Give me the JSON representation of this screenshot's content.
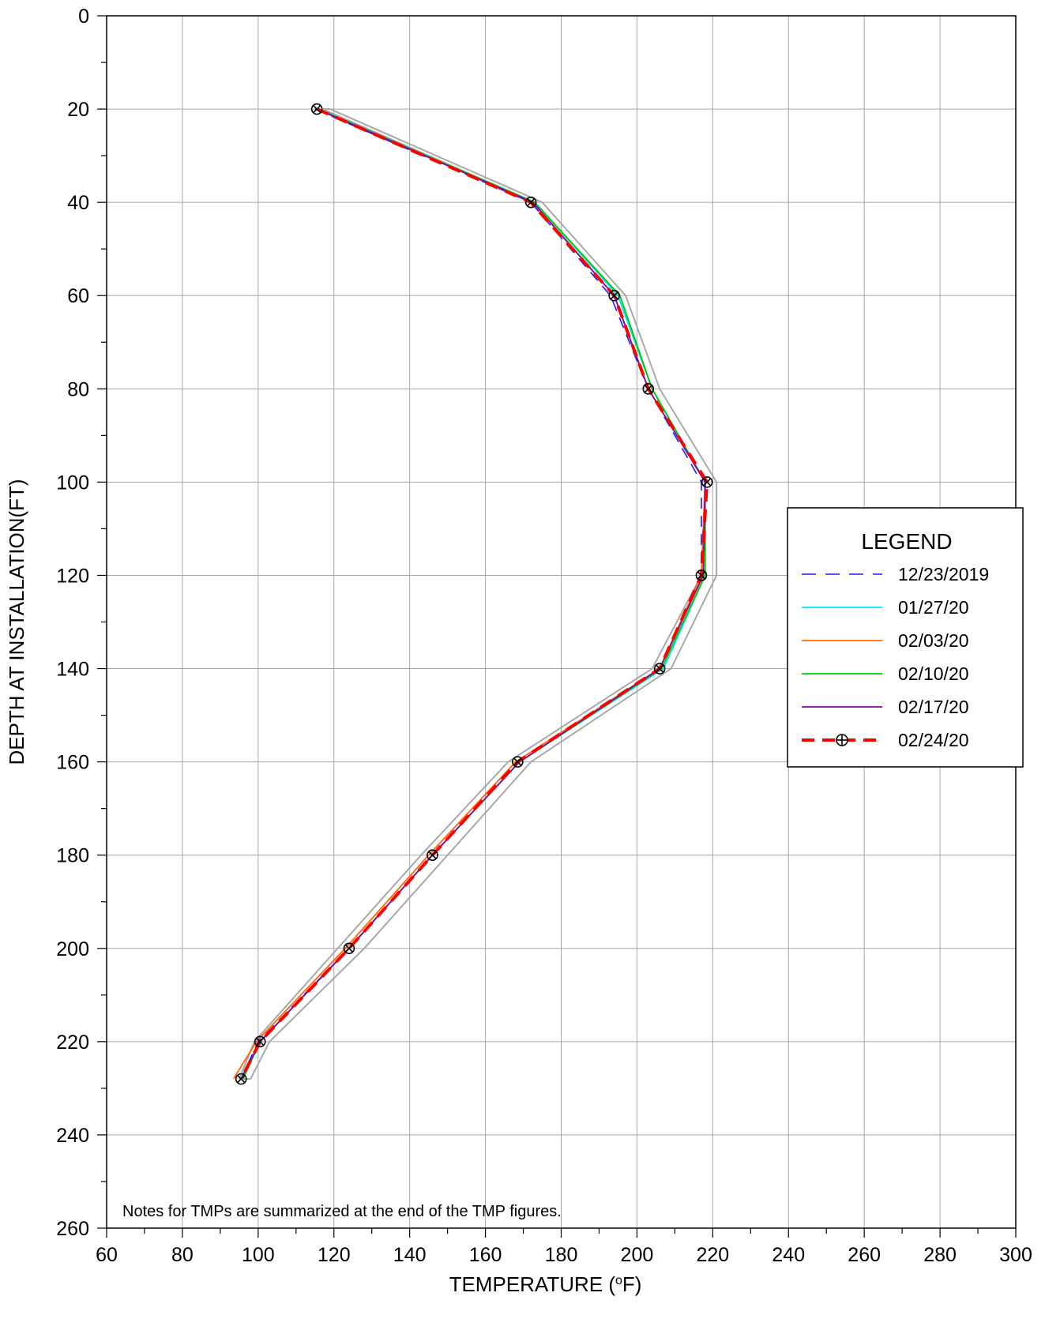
{
  "chart_data": {
    "type": "line",
    "xlabel": "TEMPERATURE (",
    "xlabel_superscript": "o",
    "xlabel_unit": "F)",
    "ylabel": "DEPTH AT INSTALLATION(FT)",
    "xlim": [
      60,
      300
    ],
    "ylim": [
      0,
      260
    ],
    "y_inverted": true,
    "x_ticks": [
      60,
      80,
      100,
      120,
      140,
      160,
      180,
      200,
      220,
      240,
      260,
      280,
      300
    ],
    "y_ticks": [
      0,
      20,
      40,
      60,
      80,
      100,
      120,
      140,
      160,
      180,
      200,
      220,
      240,
      260
    ],
    "grid": true,
    "legend_placement": "right",
    "legend_title": "LEGEND",
    "note": "Notes for TMPs are summarized at the end of the TMP figures.",
    "depths": [
      20,
      40,
      60,
      80,
      100,
      120,
      140,
      160,
      180,
      200,
      220,
      228
    ],
    "reference_envelope": {
      "color": "#a8a8a8",
      "left": [
        117,
        173,
        195,
        204,
        218,
        217,
        204,
        166,
        143,
        121,
        99,
        95
      ],
      "right": [
        119,
        175,
        197,
        206,
        221,
        221,
        209,
        172,
        150,
        128,
        103,
        98
      ]
    },
    "series": [
      {
        "name": "12/23/2019",
        "color": "#1a1aff",
        "style": "dashed",
        "values": [
          115,
          172,
          193,
          203,
          217,
          217,
          206,
          169,
          146,
          124,
          100,
          95.5
        ]
      },
      {
        "name": "01/27/20",
        "color": "#00e5ff",
        "style": "solid",
        "values": [
          116,
          173,
          195,
          204,
          218,
          218,
          207,
          169,
          146,
          124,
          100.5,
          96
        ]
      },
      {
        "name": "02/03/20",
        "color": "#ff6600",
        "style": "solid",
        "values": [
          115.5,
          172.5,
          194,
          203,
          218,
          217,
          206,
          168,
          145,
          123,
          99.5,
          93.5
        ]
      },
      {
        "name": "02/10/20",
        "color": "#00cc00",
        "style": "solid",
        "values": [
          116,
          173,
          195.5,
          204,
          218,
          218,
          206.5,
          169,
          146,
          124,
          100.5,
          96
        ]
      },
      {
        "name": "02/17/20",
        "color": "#8800aa",
        "style": "solid",
        "values": [
          115.5,
          172.5,
          194,
          203,
          218,
          217.5,
          206,
          169,
          146,
          124,
          100.5,
          95.5
        ]
      },
      {
        "name": "02/24/20",
        "color": "#ff0000",
        "style": "dashed-marker",
        "values": [
          115.5,
          172,
          194,
          203,
          218.5,
          217,
          206,
          168.5,
          146,
          124,
          100.5,
          95.5
        ]
      }
    ]
  }
}
